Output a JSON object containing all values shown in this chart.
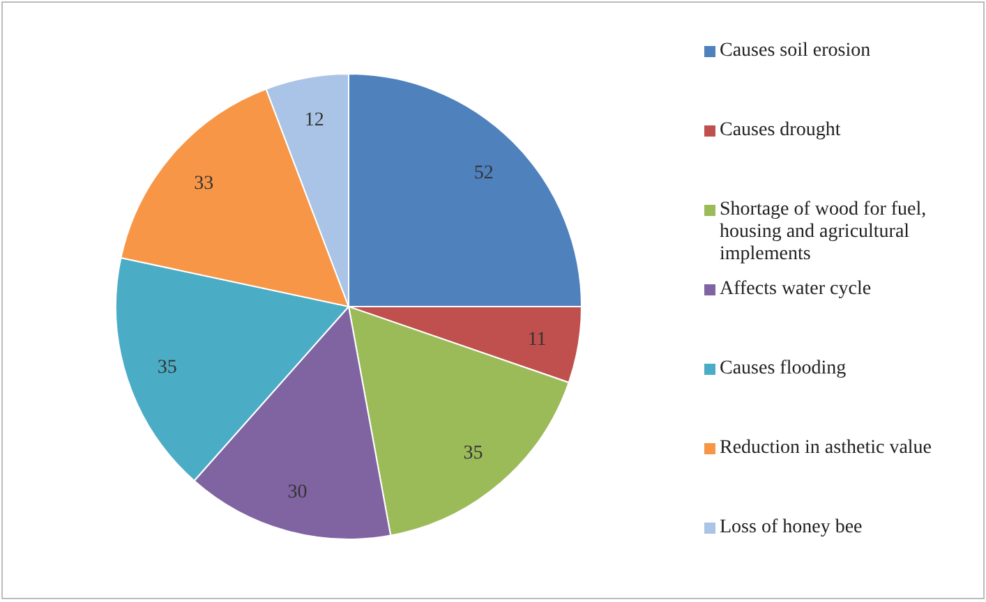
{
  "chart_data": {
    "type": "pie",
    "categories": [
      "Causes soil erosion",
      "Causes drought",
      "Shortage of wood for fuel, housing and agricultural implements",
      "Affects water cycle",
      "Causes flooding",
      "Reduction in asthetic value",
      "Loss of honey bee"
    ],
    "values": [
      52,
      11,
      35,
      30,
      35,
      33,
      12
    ],
    "colors": [
      "#4f81bd",
      "#c0504d",
      "#9bbb59",
      "#8064a2",
      "#4bacc6",
      "#f79646",
      "#a9c4e6"
    ],
    "data_labels": true,
    "legend": "right"
  }
}
